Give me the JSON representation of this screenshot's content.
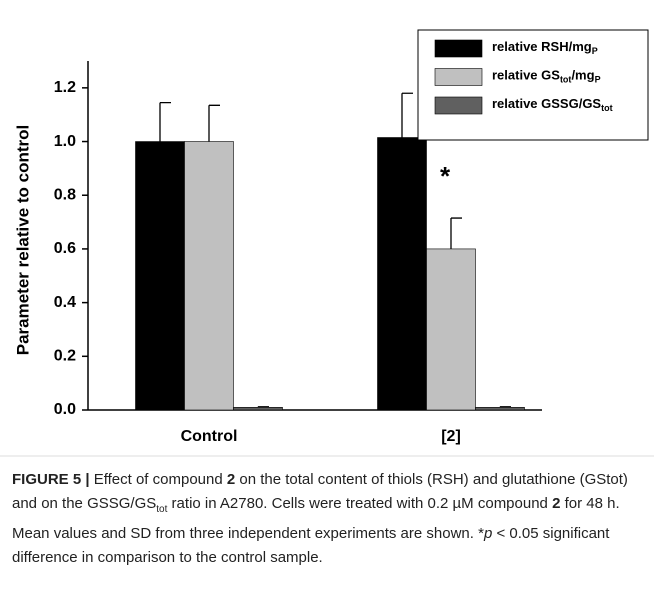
{
  "chart_data": {
    "type": "bar",
    "y_label": "Parameter relative to control",
    "categories": [
      "Control",
      "[2]"
    ],
    "series": [
      {
        "name": [
          "relative RSH/mg",
          "P"
        ],
        "color": "#000000",
        "values": [
          1.0,
          1.015
        ],
        "errors": [
          0.145,
          0.165
        ]
      },
      {
        "name": [
          "relative GS",
          "tot",
          "/mg",
          "P"
        ],
        "color": "#c0c0c0",
        "values": [
          1.0,
          0.6
        ],
        "errors": [
          0.135,
          0.115
        ]
      },
      {
        "name": [
          "relative GSSG/GS",
          "tot"
        ],
        "color": "#606060",
        "values": [
          0.01,
          0.01
        ],
        "errors": [
          0.002,
          0.002
        ]
      }
    ],
    "ylim": [
      0,
      1.3
    ],
    "yticks": [
      {
        "value": 0,
        "label": "0.0"
      },
      0.2,
      0.4,
      0.6,
      0.8,
      {
        "value": 1,
        "label": "1.0"
      },
      1.2
    ],
    "annotations": [
      {
        "text": "*",
        "category": 1
      }
    ],
    "legend": "upper right"
  },
  "caption": [
    {
      "text": "FIGURE 5 | ",
      "style": "b"
    },
    {
      "text": "Effect of compound ",
      "style": ""
    },
    {
      "text": "2",
      "style": "b"
    },
    {
      "text": " on the total content of thiols (RSH) and glutathione (GStot) and on the GSSG/GS",
      "style": ""
    },
    {
      "text": "tot",
      "style": "sub"
    },
    {
      "text": " ratio in A2780. Cells were treated with 0.2 µM compound ",
      "style": ""
    },
    {
      "text": "2",
      "style": "b"
    },
    {
      "text": " for 48 h. Mean values and SD from three independent experiments are shown. *",
      "style": ""
    },
    {
      "text": "p",
      "style": "i"
    },
    {
      "text": " < 0.05 significant difference in comparison to the control sample.",
      "style": ""
    }
  ]
}
